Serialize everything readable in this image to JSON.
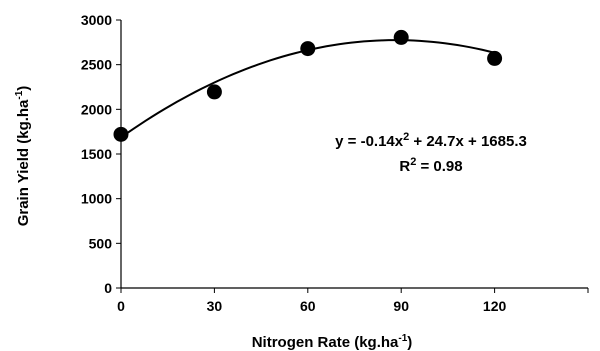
{
  "chart_data": {
    "type": "scatter",
    "x": [
      0,
      30,
      60,
      90,
      120
    ],
    "y": [
      1720,
      2195,
      2680,
      2805,
      2570
    ],
    "xticks": [
      0,
      30,
      60,
      90,
      120
    ],
    "yticks": [
      0,
      500,
      1000,
      1500,
      2000,
      2500,
      3000
    ],
    "xlim": [
      0,
      150
    ],
    "ylim": [
      0,
      3000
    ],
    "xlabel": "Nitrogen Rate (kg.ha",
    "xlabel_sup": "-1",
    "xlabel_end": ")",
    "ylabel": "Grain Yield (kg.ha",
    "ylabel_sup": "-1",
    "ylabel_end": ")",
    "trendline": {
      "type": "polynomial",
      "coefficients": [
        -0.14,
        24.7,
        1685.3
      ],
      "x_range": [
        0,
        120
      ],
      "color": "#000000"
    },
    "equation": {
      "prefix": "y = -0.14x",
      "sup": "2",
      "suffix": " + 24.7x + 1685.3"
    },
    "r_squared": {
      "prefix": "R",
      "sup": "2",
      "suffix": " = 0.98"
    },
    "marker_color": "#000000",
    "grid": false,
    "legend": "none"
  }
}
